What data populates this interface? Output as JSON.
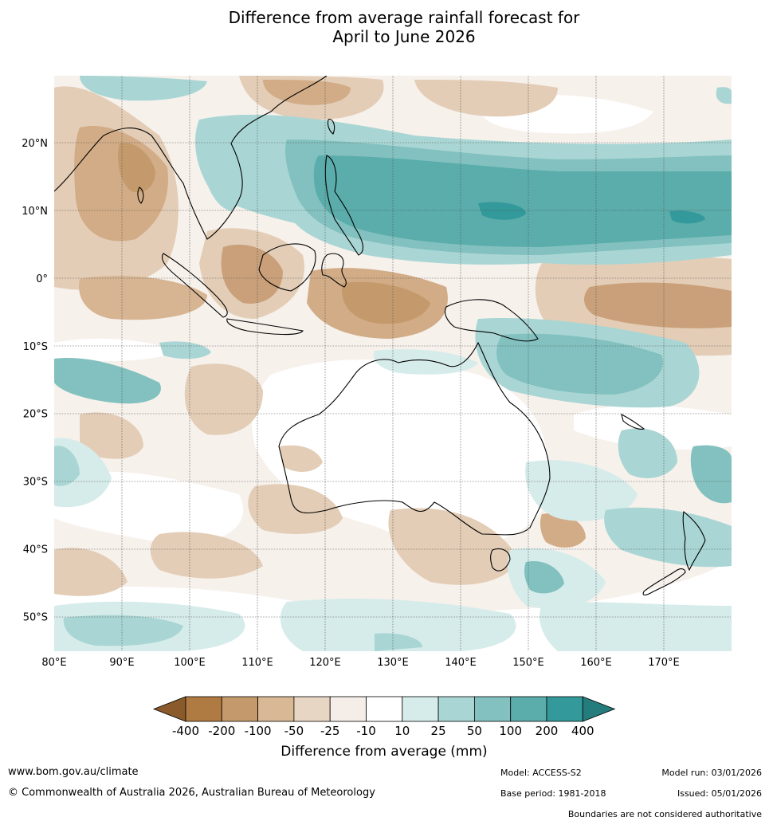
{
  "title": {
    "line1": "Difference from average rainfall forecast for",
    "line2": "April to June 2026"
  },
  "map": {
    "lat_labels": [
      "20°N",
      "10°N",
      "0°",
      "10°S",
      "20°S",
      "30°S",
      "40°S",
      "50°S"
    ],
    "lat_values": [
      20,
      10,
      0,
      -10,
      -20,
      -30,
      -40,
      -50
    ],
    "lon_labels": [
      "80°E",
      "90°E",
      "100°E",
      "110°E",
      "120°E",
      "130°E",
      "140°E",
      "150°E",
      "160°E",
      "170°E"
    ],
    "lon_values": [
      80,
      90,
      100,
      110,
      120,
      130,
      140,
      150,
      160,
      170
    ],
    "lon_range": [
      80,
      180
    ],
    "lat_range": [
      -55,
      30
    ]
  },
  "colorbar": {
    "labels": [
      "-400",
      "-200",
      "-100",
      "-50",
      "-25",
      "-10",
      "10",
      "25",
      "50",
      "100",
      "200",
      "400"
    ],
    "colors": [
      "#8a5a2b",
      "#b07a43",
      "#c49a6c",
      "#d9b895",
      "#e8d6c4",
      "#f5ede7",
      "#ffffff",
      "#d6ecea",
      "#a9d6d4",
      "#82c1bf",
      "#5aadab",
      "#33999a",
      "#257c7c"
    ],
    "title": "Difference from average (mm)"
  },
  "footer": {
    "website": "www.bom.gov.au/climate",
    "copyright": "© Commonwealth of Australia 2026, Australian Bureau of Meteorology",
    "model": "Model: ACCESS-S2",
    "base_period": "Base period: 1981-2018",
    "model_run": "Model run: 03/01/2026",
    "issued": "Issued: 05/01/2026",
    "disclaimer": "Boundaries are not considered authoritative"
  }
}
